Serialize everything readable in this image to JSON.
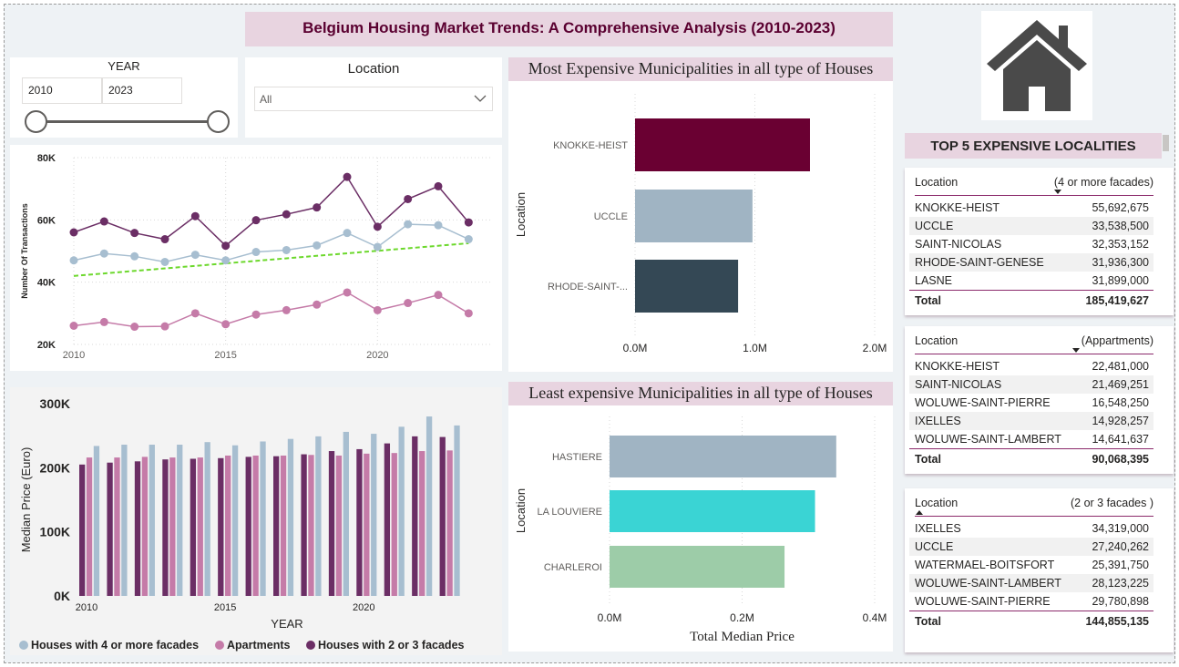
{
  "title": "Belgium Housing Market Trends: A Comprehensive Analysis (2010-2023)",
  "year_slicer": {
    "label": "YEAR",
    "from": "2010",
    "to": "2023"
  },
  "location_slicer": {
    "label": "Location",
    "value": "All"
  },
  "logo_icon": "house-icon",
  "colors": {
    "accent_pink_header": "#e8d4e0",
    "dark_purple": "#6a0032",
    "houses_2_3": "#6b2e65",
    "apartments": "#c57ba8",
    "houses_4": "#a7bed0",
    "trend": "#6cd82c"
  },
  "charts": {
    "transactions_line": {
      "type": "line",
      "ylabel": "Number Of Transactions",
      "yticks": [
        "80K",
        "60K",
        "40K",
        "20K"
      ],
      "xticks": [
        "2010",
        "2015",
        "2020"
      ],
      "ylim": [
        20000,
        80000
      ],
      "x": [
        2010,
        2011,
        2012,
        2013,
        2014,
        2015,
        2016,
        2017,
        2018,
        2019,
        2020,
        2021,
        2022,
        2023
      ],
      "series": [
        {
          "color": "#6b2e65",
          "values": [
            56000,
            59500,
            55800,
            53800,
            61200,
            51700,
            59900,
            61800,
            64000,
            73800,
            57800,
            66700,
            70800,
            59200
          ]
        },
        {
          "color": "#a7bed0",
          "values": [
            47000,
            49200,
            48300,
            46500,
            48800,
            47000,
            49700,
            50300,
            51800,
            55800,
            51300,
            58600,
            58300,
            53800
          ]
        },
        {
          "color": "#c57ba8",
          "values": [
            26000,
            27200,
            25700,
            25800,
            30000,
            26500,
            29600,
            31000,
            32800,
            36700,
            31000,
            33300,
            35900,
            30000
          ]
        }
      ],
      "trendline": {
        "color": "#6cd82c",
        "start": 42000,
        "end": 52500
      }
    },
    "median_price_bar": {
      "type": "bar",
      "xlabel": "YEAR",
      "ylabel": "Median Price (Euro)",
      "yticks": [
        "300K",
        "200K",
        "100K",
        "0K"
      ],
      "xticks": [
        "2010",
        "2015",
        "2020"
      ],
      "ylim": [
        0,
        300000
      ],
      "categories": [
        2010,
        2011,
        2012,
        2013,
        2014,
        2015,
        2016,
        2017,
        2018,
        2019,
        2020,
        2021,
        2022,
        2023
      ],
      "series": [
        {
          "name": "Houses with 2 or 3 facades",
          "color": "#6b2e65",
          "values": [
            205000,
            208000,
            210000,
            213000,
            214000,
            215000,
            217000,
            218000,
            221000,
            226000,
            229000,
            238000,
            249000,
            248000
          ]
        },
        {
          "name": "Apartments",
          "color": "#c57ba8",
          "values": [
            216000,
            216000,
            217000,
            216000,
            216000,
            219000,
            219000,
            219000,
            220000,
            219000,
            222000,
            223000,
            226000,
            227000
          ]
        },
        {
          "name": "Houses with 4 or more facades",
          "color": "#a7bed0",
          "values": [
            234000,
            236000,
            236000,
            236000,
            240000,
            235000,
            241000,
            245000,
            249000,
            256000,
            253000,
            264000,
            280000,
            266000
          ]
        }
      ],
      "legend": [
        "Houses with 4 or more facades",
        "Apartments",
        "Houses with 2 or 3 facades"
      ]
    },
    "most_expensive": {
      "type": "bar",
      "title": "Most Expensive Municipalities in all type of Houses",
      "ylabel": "Location",
      "categories": [
        "KNOKKE-HEIST",
        "UCCLE",
        "RHODE-SAINT-..."
      ],
      "values": [
        1460000,
        980000,
        860000
      ],
      "colors": [
        "#6a0032",
        "#a0b4c3",
        "#344855"
      ],
      "xlim": [
        0,
        2000000
      ],
      "xticks": [
        "0.0M",
        "1.0M",
        "2.0M"
      ]
    },
    "least_expensive": {
      "type": "bar",
      "title": "Least expensive Municipalities in all type of Houses",
      "ylabel": "Location",
      "xlabel": "Total Median Price",
      "categories": [
        "HASTIERE",
        "LA LOUVIERE",
        "CHARLEROI"
      ],
      "values": [
        342000,
        310000,
        264000
      ],
      "colors": [
        "#a0b4c3",
        "#3ad4d4",
        "#9dcca8"
      ],
      "xlim": [
        0,
        400000
      ],
      "xticks": [
        "0.0M",
        "0.2M",
        "0.4M"
      ]
    }
  },
  "chart_data": [
    {
      "type": "line",
      "ylabel": "Number Of Transactions",
      "x": [
        2010,
        2011,
        2012,
        2013,
        2014,
        2015,
        2016,
        2017,
        2018,
        2019,
        2020,
        2021,
        2022,
        2023
      ],
      "ylim": [
        20000,
        80000
      ],
      "series": [
        {
          "values": [
            56000,
            59500,
            55800,
            53800,
            61200,
            51700,
            59900,
            61800,
            64000,
            73800,
            57800,
            66700,
            70800,
            59200
          ]
        },
        {
          "values": [
            47000,
            49200,
            48300,
            46500,
            48800,
            47000,
            49700,
            50300,
            51800,
            55800,
            51300,
            58600,
            58300,
            53800
          ]
        },
        {
          "values": [
            26000,
            27200,
            25700,
            25800,
            30000,
            26500,
            29600,
            31000,
            32800,
            36700,
            31000,
            33300,
            35900,
            30000
          ]
        }
      ]
    },
    {
      "type": "bar",
      "xlabel": "YEAR",
      "ylabel": "Median Price (Euro)",
      "categories": [
        2010,
        2011,
        2012,
        2013,
        2014,
        2015,
        2016,
        2017,
        2018,
        2019,
        2020,
        2021,
        2022,
        2023
      ],
      "ylim": [
        0,
        300000
      ],
      "series": [
        {
          "name": "Houses with 2 or 3 facades",
          "values": [
            205000,
            208000,
            210000,
            213000,
            214000,
            215000,
            217000,
            218000,
            221000,
            226000,
            229000,
            238000,
            249000,
            248000
          ]
        },
        {
          "name": "Apartments",
          "values": [
            216000,
            216000,
            217000,
            216000,
            216000,
            219000,
            219000,
            219000,
            220000,
            219000,
            222000,
            223000,
            226000,
            227000
          ]
        },
        {
          "name": "Houses with 4 or more facades",
          "values": [
            234000,
            236000,
            236000,
            236000,
            240000,
            235000,
            241000,
            245000,
            249000,
            256000,
            253000,
            264000,
            280000,
            266000
          ]
        }
      ]
    },
    {
      "type": "bar",
      "title": "Most Expensive Municipalities in all type of Houses",
      "ylabel": "Location",
      "categories": [
        "KNOKKE-HEIST",
        "UCCLE",
        "RHODE-SAINT-..."
      ],
      "values": [
        1460000,
        980000,
        860000
      ]
    },
    {
      "type": "bar",
      "title": "Least expensive Municipalities in all type of Houses",
      "ylabel": "Location",
      "xlabel": "Total Median Price",
      "categories": [
        "HASTIERE",
        "LA LOUVIERE",
        "CHARLEROI"
      ],
      "values": [
        342000,
        310000,
        264000
      ]
    }
  ],
  "top5": {
    "title": "TOP 5 EXPENSIVE LOCALITIES",
    "tables": [
      {
        "col1": "Location",
        "col2": "(4 or more facades)",
        "rows": [
          [
            "KNOKKE-HEIST",
            "55,692,675"
          ],
          [
            "UCCLE",
            "33,538,500"
          ],
          [
            "SAINT-NICOLAS",
            "32,353,152"
          ],
          [
            "RHODE-SAINT-GENESE",
            "31,936,300"
          ],
          [
            "LASNE",
            "31,899,000"
          ]
        ],
        "total_label": "Total",
        "total": "185,419,627"
      },
      {
        "col1": "Location",
        "col2": "(Appartments)",
        "rows": [
          [
            "KNOKKE-HEIST",
            "22,481,000"
          ],
          [
            "SAINT-NICOLAS",
            "21,469,251"
          ],
          [
            "WOLUWE-SAINT-PIERRE",
            "16,548,250"
          ],
          [
            "IXELLES",
            "14,928,257"
          ],
          [
            "WOLUWE-SAINT-LAMBERT",
            "14,641,637"
          ]
        ],
        "total_label": "Total",
        "total": "90,068,395"
      },
      {
        "col1": "Location",
        "col2": "(2 or 3 facades )",
        "rows": [
          [
            "IXELLES",
            "34,319,000"
          ],
          [
            "UCCLE",
            "27,240,262"
          ],
          [
            "WATERMAEL-BOITSFORT",
            "25,391,750"
          ],
          [
            "WOLUWE-SAINT-LAMBERT",
            "28,123,225"
          ],
          [
            "WOLUWE-SAINT-PIERRE",
            "29,780,898"
          ]
        ],
        "total_label": "Total",
        "total": "144,855,135"
      }
    ]
  }
}
